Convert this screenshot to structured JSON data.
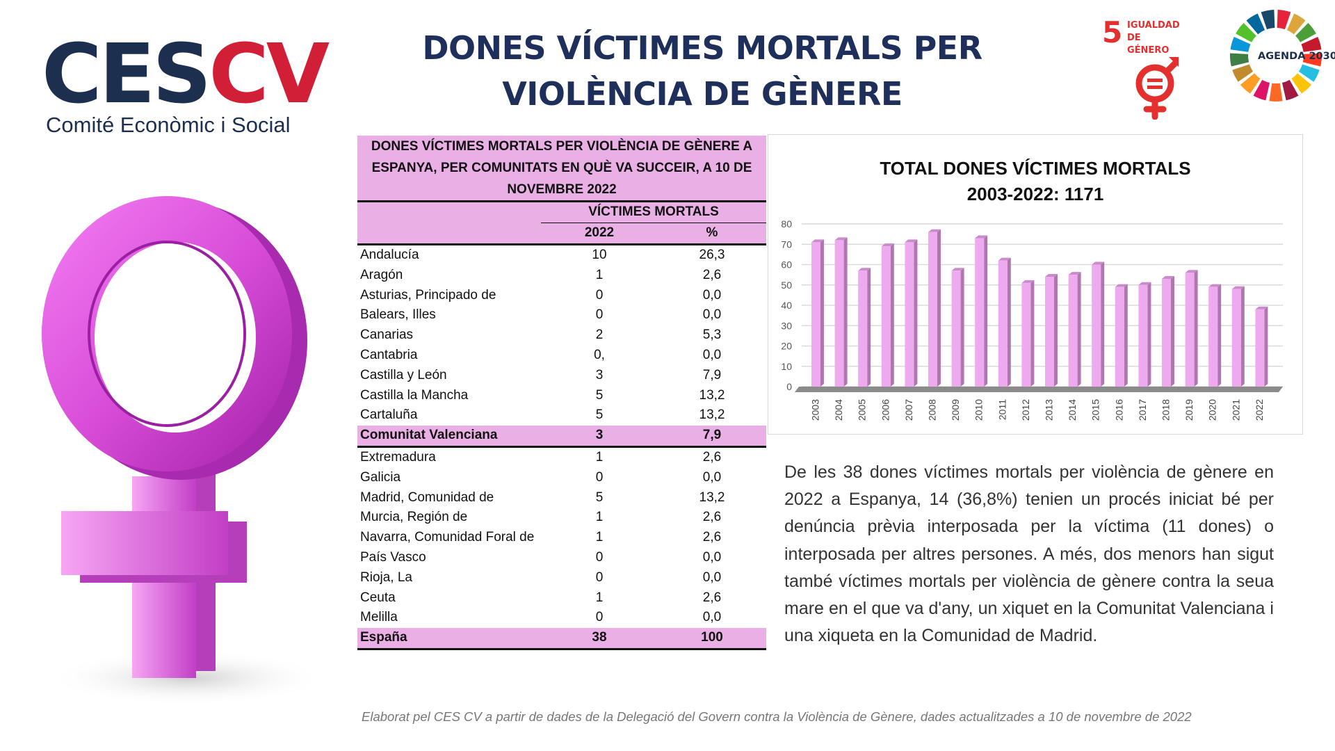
{
  "logo": {
    "ces": "CES",
    "cv": "CV",
    "subtitle": "Comité Econòmic i Social"
  },
  "title_line1": "DONES VÍCTIMES MORTALS PER",
  "title_line2": "VIOLÈNCIA DE GÈNERE",
  "sdg5": {
    "number": "5",
    "label_line1": "IGUALDAD",
    "label_line2": "DE GÉNERO",
    "color": "#e3302f"
  },
  "agenda": {
    "label": "AGENDA 2030"
  },
  "colors": {
    "title": "#1d2f5a",
    "table_header_bg": "#eab0e6",
    "bar": "#eeaaee",
    "logo_red": "#d01f36",
    "logo_navy": "#1d2f4f"
  },
  "table": {
    "title": "DONES VÍCTIMES MORTALS PER VIOLÈNCIA DE GÈNERE A ESPANYA, PER COMUNITATS EN QUÈ VA SUCCEIR, A 10 DE NOVEMBRE 2022",
    "group_header": "VÍCTIMES MORTALS",
    "col_year": "2022",
    "col_pct": "%",
    "rows": [
      {
        "region": "Andalucía",
        "value": "10",
        "pct": "26,3"
      },
      {
        "region": "Aragón",
        "value": "1",
        "pct": "2,6"
      },
      {
        "region": "Asturias, Principado de",
        "value": "0",
        "pct": "0,0"
      },
      {
        "region": "Balears, Illes",
        "value": "0",
        "pct": "0,0"
      },
      {
        "region": "Canarias",
        "value": "2",
        "pct": "5,3"
      },
      {
        "region": "Cantabria",
        "value": "0,",
        "pct": "0,0"
      },
      {
        "region": "Castilla y León",
        "value": "3",
        "pct": "7,9"
      },
      {
        "region": "Castilla la Mancha",
        "value": "5",
        "pct": "13,2"
      },
      {
        "region": "Cartaluña",
        "value": "5",
        "pct": "13,2"
      },
      {
        "region": "Comunitat Valenciana",
        "value": "3",
        "pct": "7,9",
        "highlight": true
      },
      {
        "region": "Extremadura",
        "value": "1",
        "pct": "2,6"
      },
      {
        "region": "Galicia",
        "value": "0",
        "pct": "0,0"
      },
      {
        "region": "Madrid, Comunidad de",
        "value": "5",
        "pct": "13,2"
      },
      {
        "region": "Murcia, Región de",
        "value": "1",
        "pct": "2,6"
      },
      {
        "region": "Navarra, Comunidad Foral de",
        "value": "1",
        "pct": "2,6"
      },
      {
        "region": "País Vasco",
        "value": "0",
        "pct": "0,0"
      },
      {
        "region": "Rioja, La",
        "value": "0",
        "pct": "0,0"
      },
      {
        "region": "Ceuta",
        "value": "1",
        "pct": "2,6"
      },
      {
        "region": "Melilla",
        "value": "0",
        "pct": "0,0"
      },
      {
        "region": "España",
        "value": "38",
        "pct": "100",
        "total": true
      }
    ]
  },
  "chart_data": {
    "type": "bar",
    "title_line1": "TOTAL DONES VÍCTIMES MORTALS",
    "title_line2": "2003-2022: 1171",
    "categories": [
      "2003",
      "2004",
      "2005",
      "2006",
      "2007",
      "2008",
      "2009",
      "2010",
      "2011",
      "2012",
      "2013",
      "2014",
      "2015",
      "2016",
      "2017",
      "2018",
      "2019",
      "2020",
      "2021",
      "2022"
    ],
    "values": [
      71,
      72,
      57,
      69,
      71,
      76,
      57,
      73,
      62,
      51,
      54,
      55,
      60,
      49,
      50,
      53,
      56,
      49,
      48,
      38
    ],
    "yticks": [
      0,
      10,
      20,
      30,
      40,
      50,
      60,
      70,
      80
    ],
    "ylim": [
      0,
      80
    ],
    "grid": true,
    "xlabel": "",
    "ylabel": ""
  },
  "paragraph": "De les 38 dones víctimes mortals per violència de gènere en 2022 a Espanya, 14 (36,8%) tenien un procés iniciat bé per denúncia prèvia interposada per la víctima (11 dones) o interposada per altres persones. A més, dos menors han sigut també víctimes mortals per violència de gènere contra la seua mare en el que va d'any, un xiquet en la Comunitat Valenciana i una xiqueta en la Comunidad de Madrid.",
  "source": "Elaborat pel CES CV a partir de dades de la Delegació del Govern contra la Violència de Gènere, dades actualitzades a 10 de novembre de 2022"
}
